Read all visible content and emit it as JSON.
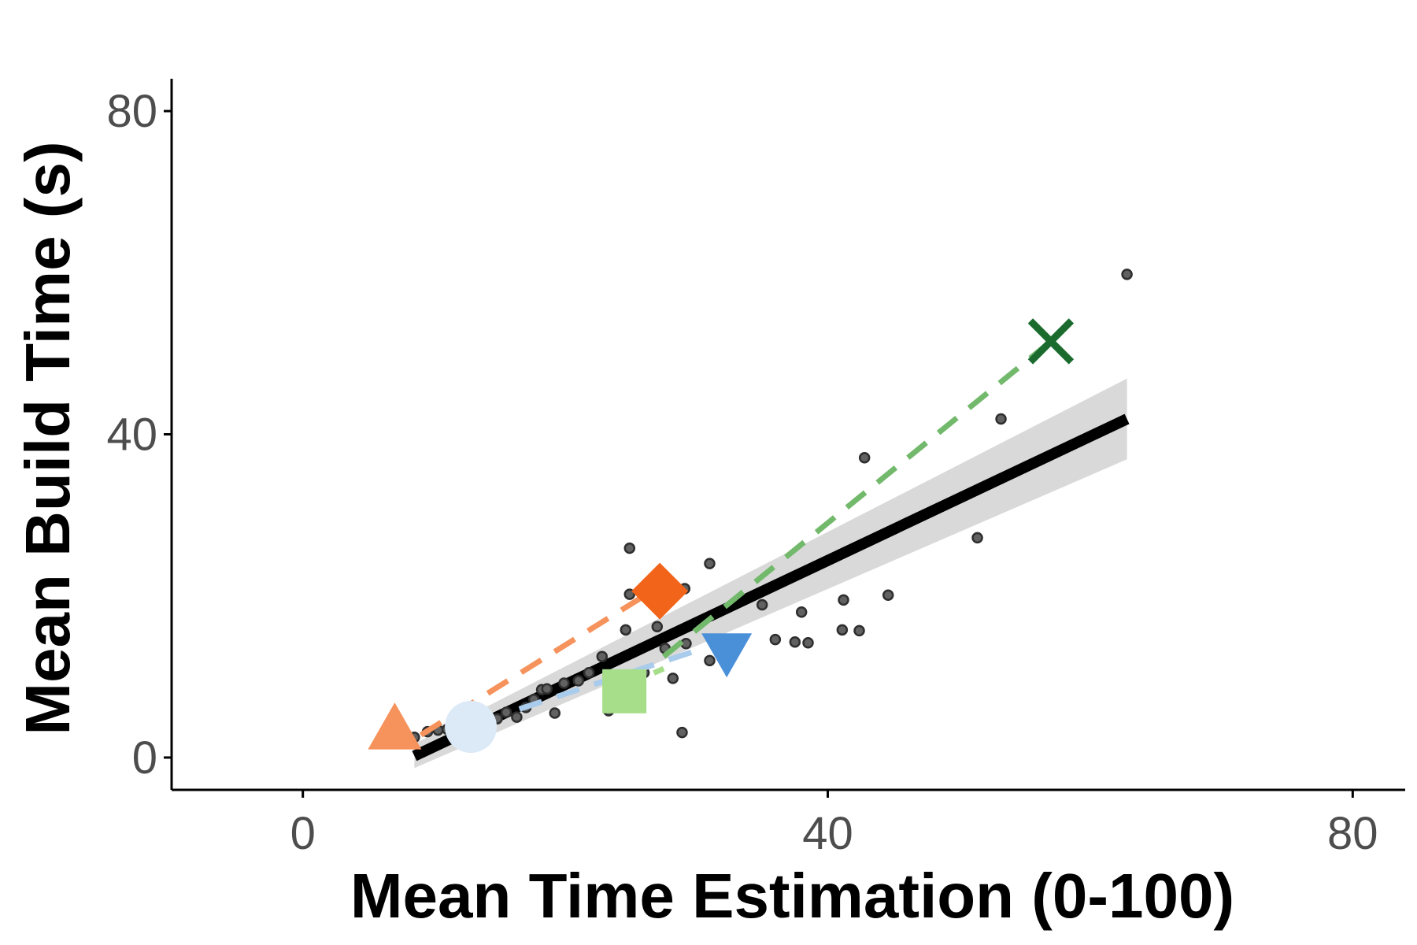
{
  "chart_data": {
    "type": "scatter",
    "xlabel": "Mean Time Estimation (0-100)",
    "ylabel": "Mean Build Time (s)",
    "xlim": [
      -10,
      84
    ],
    "ylim": [
      -4,
      84
    ],
    "x_ticks": [
      {
        "value": 0,
        "label": "0"
      },
      {
        "value": 40,
        "label": "40"
      },
      {
        "value": 80,
        "label": "80"
      }
    ],
    "y_ticks": [
      {
        "value": 0,
        "label": "0"
      },
      {
        "value": 40,
        "label": "40"
      },
      {
        "value": 80,
        "label": "80"
      }
    ],
    "grid": false,
    "legend": "none",
    "colors": {
      "points": "#616161",
      "fit_line": "#000000",
      "ribbon": "#d9d9d9",
      "axis": "#000000"
    },
    "points": [
      [
        8.5,
        2.5
      ],
      [
        9.5,
        3.2
      ],
      [
        10.3,
        3.4
      ],
      [
        11.0,
        3.5
      ],
      [
        11.7,
        4.0
      ],
      [
        12.3,
        4.3
      ],
      [
        12.9,
        3.6
      ],
      [
        13.6,
        4.4
      ],
      [
        14.2,
        4.6
      ],
      [
        14.8,
        4.8
      ],
      [
        15.5,
        5.6
      ],
      [
        16.3,
        5.0
      ],
      [
        17.0,
        6.2
      ],
      [
        17.6,
        7.2
      ],
      [
        18.2,
        8.4
      ],
      [
        18.6,
        8.5
      ],
      [
        19.2,
        5.5
      ],
      [
        19.9,
        9.2
      ],
      [
        21.0,
        9.5
      ],
      [
        21.8,
        10.5
      ],
      [
        22.8,
        12.5
      ],
      [
        23.3,
        5.8
      ],
      [
        24.6,
        15.8
      ],
      [
        24.9,
        20.2
      ],
      [
        24.9,
        25.9
      ],
      [
        26.0,
        10.5
      ],
      [
        27.0,
        16.2
      ],
      [
        27.6,
        13.5
      ],
      [
        28.2,
        9.8
      ],
      [
        28.9,
        3.1
      ],
      [
        29.1,
        20.9
      ],
      [
        29.2,
        14.1
      ],
      [
        31.0,
        24.0
      ],
      [
        31.0,
        12.0
      ],
      [
        35.0,
        18.9
      ],
      [
        36.0,
        14.6
      ],
      [
        37.5,
        14.3
      ],
      [
        38.0,
        18.0
      ],
      [
        38.5,
        14.2
      ],
      [
        41.2,
        19.5
      ],
      [
        41.1,
        15.8
      ],
      [
        42.4,
        15.7
      ],
      [
        42.8,
        37.1
      ],
      [
        44.6,
        20.1
      ],
      [
        51.4,
        27.2
      ],
      [
        53.2,
        41.9
      ],
      [
        62.8,
        59.8
      ]
    ],
    "fit_line": {
      "x": [
        8.5,
        62.8
      ],
      "y": [
        0.2,
        41.9
      ]
    },
    "confidence_band": {
      "x": [
        8.5,
        62.8
      ],
      "lower": [
        -1.3,
        36.9
      ],
      "upper": [
        1.7,
        46.9
      ]
    },
    "group_lines": [
      {
        "color": "#f6925b",
        "x": [
          9.0,
          26.5
        ],
        "y": [
          2.8,
          20.5
        ]
      },
      {
        "color": "#a9cbec",
        "x": [
          16.5,
          30.5
        ],
        "y": [
          6.0,
          13.5
        ]
      },
      {
        "color": "#a6de8a",
        "x": [
          24.0,
          27.5
        ],
        "y": [
          8.5,
          11.0
        ]
      },
      {
        "color": "#73b96c",
        "x": [
          27.5,
          57.0
        ],
        "y": [
          12.5,
          51.5
        ]
      }
    ],
    "group_markers": [
      {
        "shape": "triangle-up",
        "color": "#f6925b",
        "x": 7.0,
        "y": 3.0
      },
      {
        "shape": "circle",
        "color": "#dce9f6",
        "x": 12.8,
        "y": 3.8
      },
      {
        "shape": "square",
        "color": "#a6de8a",
        "x": 24.5,
        "y": 8.2
      },
      {
        "shape": "diamond",
        "color": "#f26419",
        "x": 27.2,
        "y": 20.6
      },
      {
        "shape": "triangle-down",
        "color": "#4a90d9",
        "x": 32.3,
        "y": 13.5
      },
      {
        "shape": "cross",
        "color": "#1b6b2e",
        "x": 57.0,
        "y": 51.5
      }
    ]
  }
}
